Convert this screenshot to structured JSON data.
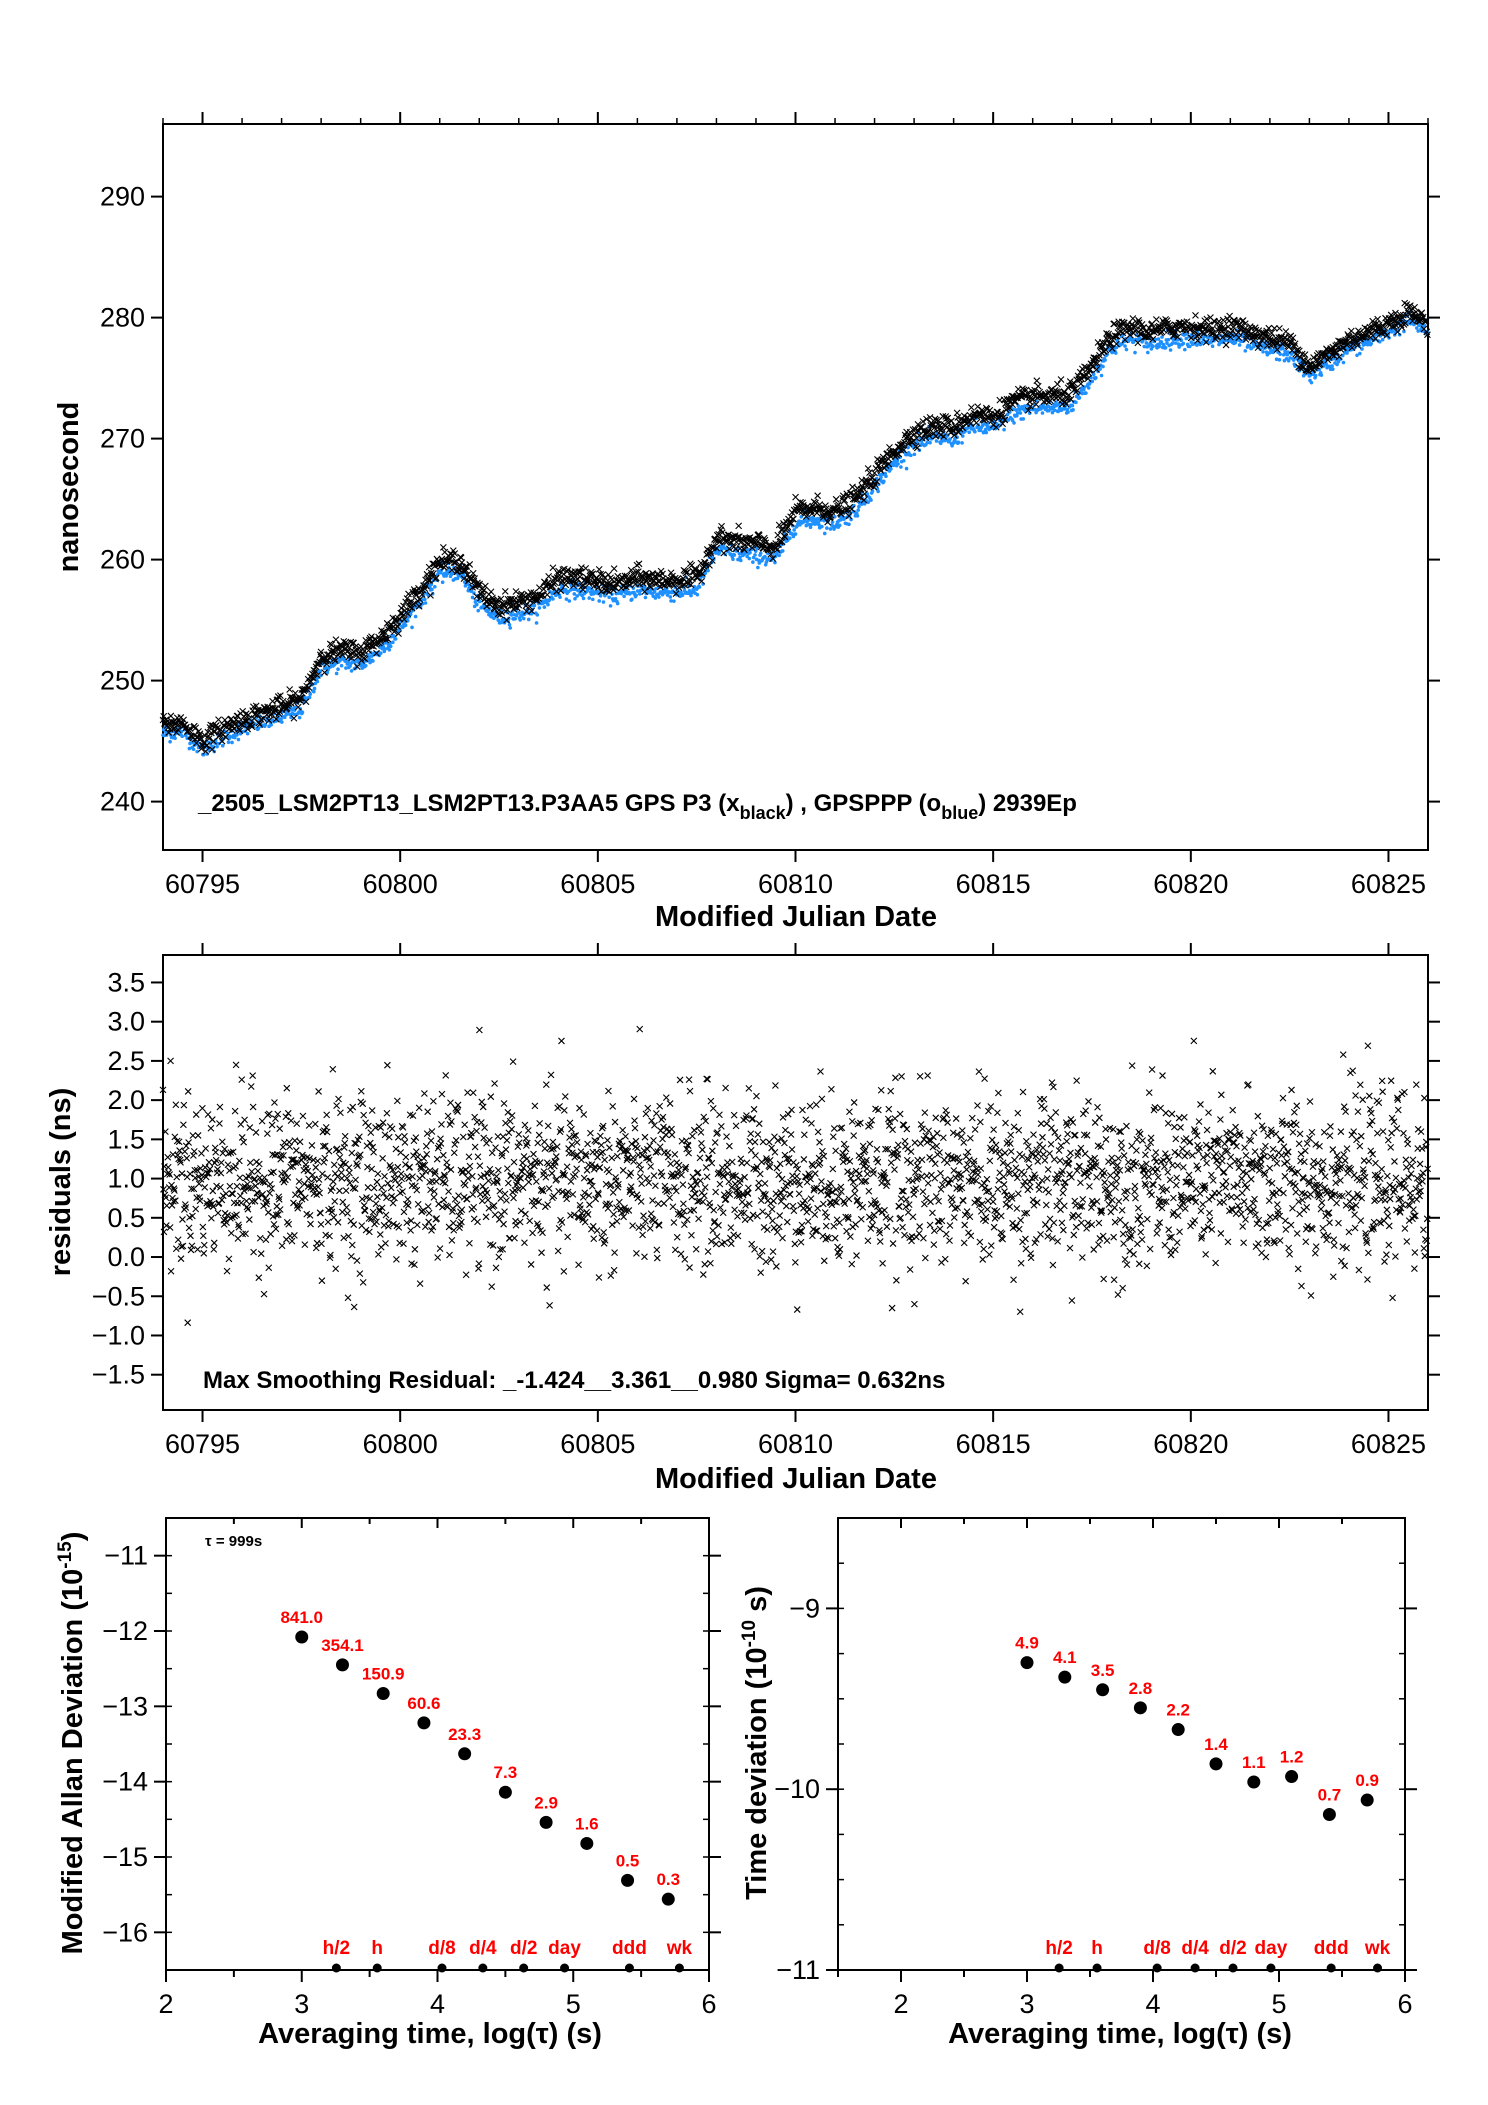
{
  "colors": {
    "black_series": "#000000",
    "blue_series": "#1e90ff",
    "marker_labels": "#ff0000",
    "background": "#ffffff"
  },
  "chart_data": [
    {
      "id": "phase",
      "type": "scatter",
      "ylabel": "nanosecond",
      "xlabel": "Modified Julian Date",
      "xlim": [
        60794.0,
        60826.0
      ],
      "ylim": [
        236,
        296
      ],
      "xticks": [
        60795,
        60800,
        60805,
        60810,
        60815,
        60820,
        60825
      ],
      "yticks": [
        240,
        250,
        260,
        270,
        280,
        290
      ],
      "annotation": "_2505_LSM2PT13_LSM2PT13.P3AA5     GPS P3 (x",
      "annotation_sub1": "black",
      "annotation_mid": ") ,  GPSPPP (o",
      "annotation_sub2": "blue",
      "annotation_end": ")  2939Ep",
      "series": [
        {
          "name": "GPS P3",
          "marker": "x",
          "color": "#000000",
          "x": [
            60794.0,
            60794.5,
            60795.0,
            60795.5,
            60796.0,
            60796.5,
            60797.0,
            60797.5,
            60798.0,
            60798.5,
            60799.0,
            60799.5,
            60800.0,
            60800.5,
            60801.0,
            60801.5,
            60802.0,
            60802.5,
            60803.0,
            60803.5,
            60804.0,
            60804.5,
            60805.0,
            60805.5,
            60806.0,
            60806.5,
            60807.0,
            60807.5,
            60808.0,
            60808.5,
            60809.0,
            60809.5,
            60810.0,
            60810.5,
            60811.0,
            60811.5,
            60812.0,
            60812.5,
            60813.0,
            60813.5,
            60814.0,
            60814.5,
            60815.0,
            60815.5,
            60816.0,
            60816.5,
            60817.0,
            60817.5,
            60818.0,
            60818.5,
            60819.0,
            60819.5,
            60820.0,
            60820.5,
            60821.0,
            60821.5,
            60822.0,
            60822.5,
            60823.0,
            60823.5,
            60824.0,
            60824.5,
            60825.0,
            60825.5,
            60826.0
          ],
          "y": [
            246.3,
            246.5,
            245.0,
            246.0,
            246.8,
            247.3,
            247.8,
            248.5,
            252.0,
            252.5,
            252.3,
            253.5,
            255.3,
            257.5,
            259.8,
            260.0,
            257.3,
            256.2,
            256.5,
            257.0,
            258.5,
            258.5,
            258.2,
            258.0,
            258.5,
            258.3,
            258.3,
            258.5,
            261.8,
            261.5,
            261.3,
            261.0,
            264.0,
            264.3,
            264.0,
            265.0,
            267.0,
            269.0,
            270.5,
            271.0,
            271.0,
            272.0,
            271.8,
            273.0,
            273.5,
            273.5,
            273.8,
            276.0,
            278.5,
            279.2,
            278.8,
            279.2,
            279.3,
            279.0,
            279.3,
            278.8,
            278.3,
            278.0,
            276.0,
            277.0,
            278.2,
            278.8,
            279.5,
            280.5,
            279.5
          ]
        },
        {
          "name": "GPSPPP",
          "marker": "o",
          "color": "#1e90ff",
          "x": [
            60794.0,
            60794.5,
            60795.0,
            60795.5,
            60796.0,
            60796.5,
            60797.0,
            60797.5,
            60798.0,
            60798.5,
            60799.0,
            60799.5,
            60800.0,
            60800.5,
            60801.0,
            60801.5,
            60802.0,
            60802.5,
            60803.0,
            60803.5,
            60804.0,
            60804.5,
            60805.0,
            60805.5,
            60806.0,
            60806.5,
            60807.0,
            60807.5,
            60808.0,
            60808.5,
            60809.0,
            60809.5,
            60810.0,
            60810.5,
            60811.0,
            60811.5,
            60812.0,
            60812.5,
            60813.0,
            60813.5,
            60814.0,
            60814.5,
            60815.0,
            60815.5,
            60816.0,
            60816.5,
            60817.0,
            60817.5,
            60818.0,
            60818.5,
            60819.0,
            60819.5,
            60820.0,
            60820.5,
            60821.0,
            60821.5,
            60822.0,
            60822.5,
            60823.0,
            60823.5,
            60824.0,
            60824.5,
            60825.0,
            60825.5,
            60826.0
          ],
          "y": [
            245.6,
            245.8,
            244.3,
            245.2,
            246.0,
            246.5,
            247.0,
            247.6,
            251.0,
            251.5,
            251.3,
            252.5,
            254.3,
            256.5,
            258.8,
            259.0,
            256.2,
            255.2,
            255.5,
            256.0,
            257.5,
            257.5,
            257.2,
            257.0,
            257.5,
            257.3,
            257.3,
            257.5,
            260.8,
            260.5,
            260.3,
            260.0,
            263.0,
            263.3,
            263.0,
            264.0,
            266.0,
            268.0,
            269.5,
            270.0,
            270.0,
            271.0,
            270.8,
            272.0,
            272.5,
            272.5,
            272.8,
            275.0,
            277.5,
            278.2,
            277.8,
            278.2,
            278.3,
            278.0,
            278.3,
            277.8,
            277.3,
            277.0,
            275.2,
            276.2,
            277.4,
            278.0,
            278.8,
            279.8,
            278.9
          ]
        }
      ]
    },
    {
      "id": "residuals",
      "type": "scatter",
      "ylabel": "residuals (ns)",
      "xlabel": "Modified Julian Date",
      "xlim": [
        60794.0,
        60826.0
      ],
      "ylim": [
        -1.95,
        3.85
      ],
      "xticks": [
        60795,
        60800,
        60805,
        60810,
        60815,
        60820,
        60825
      ],
      "yticks": [
        -1.5,
        -1.0,
        -0.5,
        0.0,
        0.5,
        1.0,
        1.5,
        2.0,
        2.5,
        3.0,
        3.5
      ],
      "ytick_labels": [
        "−1.5",
        "−1.0",
        "−0.5",
        "0.0",
        "0.5",
        "1.0",
        "1.5",
        "2.0",
        "2.5",
        "3.0",
        "3.5"
      ],
      "annotation": "Max Smoothing Residual: _-1.424__3.361__0.980  Sigma= 0.632ns",
      "mean": 0.98,
      "sigma": 0.632,
      "min": -1.424,
      "max": 3.361
    },
    {
      "id": "mdev",
      "type": "scatter",
      "ylabel": "Modified Allan Deviation (10",
      "ylabel_exp": "-15",
      "ylabel_end": ")",
      "xlabel": "Averaging time, log(τ) (s)",
      "xlim": [
        2,
        6
      ],
      "ylim": [
        -16.5,
        -10.5
      ],
      "xticks": [
        2,
        3,
        4,
        5,
        6
      ],
      "yticks": [
        -11,
        -12,
        -13,
        -14,
        -15,
        -16
      ],
      "ytick_labels": [
        "−11",
        "−12",
        "−13",
        "−14",
        "−15",
        "−16"
      ],
      "tau_note": "τ = 999s",
      "points": [
        {
          "x": 3.0,
          "y": -12.08,
          "label": "841.0"
        },
        {
          "x": 3.3,
          "y": -12.45,
          "label": "354.1"
        },
        {
          "x": 3.6,
          "y": -12.83,
          "label": "150.9"
        },
        {
          "x": 3.9,
          "y": -13.22,
          "label": "60.6"
        },
        {
          "x": 4.2,
          "y": -13.63,
          "label": "23.3"
        },
        {
          "x": 4.5,
          "y": -14.14,
          "label": "7.3"
        },
        {
          "x": 4.8,
          "y": -14.54,
          "label": "2.9"
        },
        {
          "x": 5.1,
          "y": -14.82,
          "label": "1.6"
        },
        {
          "x": 5.4,
          "y": -15.31,
          "label": "0.5"
        },
        {
          "x": 5.7,
          "y": -15.56,
          "label": "0.3"
        }
      ],
      "markers": [
        {
          "x": 3.255,
          "label": "h/2"
        },
        {
          "x": 3.556,
          "label": "h"
        },
        {
          "x": 4.033,
          "label": "d/8"
        },
        {
          "x": 4.334,
          "label": "d/4"
        },
        {
          "x": 4.635,
          "label": "d/2"
        },
        {
          "x": 4.936,
          "label": "day"
        },
        {
          "x": 5.414,
          "label": "ddd"
        },
        {
          "x": 5.782,
          "label": "wk"
        }
      ]
    },
    {
      "id": "tdev",
      "type": "scatter",
      "ylabel": "Time deviation (10",
      "ylabel_exp": "-10",
      "ylabel_end": " s)",
      "xlabel": "Averaging time, log(τ) (s)",
      "xlim": [
        1.5,
        6.0
      ],
      "ylim": [
        -11.0,
        -8.5
      ],
      "xticks": [
        2,
        3,
        4,
        5,
        6
      ],
      "yticks": [
        -9,
        -10,
        -11
      ],
      "ytick_labels": [
        "−9",
        "−10",
        "−11"
      ],
      "points": [
        {
          "x": 3.0,
          "y": -9.3,
          "label": "4.9"
        },
        {
          "x": 3.3,
          "y": -9.38,
          "label": "4.1"
        },
        {
          "x": 3.6,
          "y": -9.45,
          "label": "3.5"
        },
        {
          "x": 3.9,
          "y": -9.55,
          "label": "2.8"
        },
        {
          "x": 4.2,
          "y": -9.67,
          "label": "2.2"
        },
        {
          "x": 4.5,
          "y": -9.86,
          "label": "1.4"
        },
        {
          "x": 4.8,
          "y": -9.96,
          "label": "1.1"
        },
        {
          "x": 5.1,
          "y": -9.93,
          "label": "1.2"
        },
        {
          "x": 5.4,
          "y": -10.14,
          "label": "0.7"
        },
        {
          "x": 5.7,
          "y": -10.06,
          "label": "0.9"
        }
      ],
      "markers": [
        {
          "x": 3.255,
          "label": "h/2"
        },
        {
          "x": 3.556,
          "label": "h"
        },
        {
          "x": 4.033,
          "label": "d/8"
        },
        {
          "x": 4.334,
          "label": "d/4"
        },
        {
          "x": 4.635,
          "label": "d/2"
        },
        {
          "x": 4.936,
          "label": "day"
        },
        {
          "x": 5.414,
          "label": "ddd"
        },
        {
          "x": 5.782,
          "label": "wk"
        }
      ]
    }
  ]
}
